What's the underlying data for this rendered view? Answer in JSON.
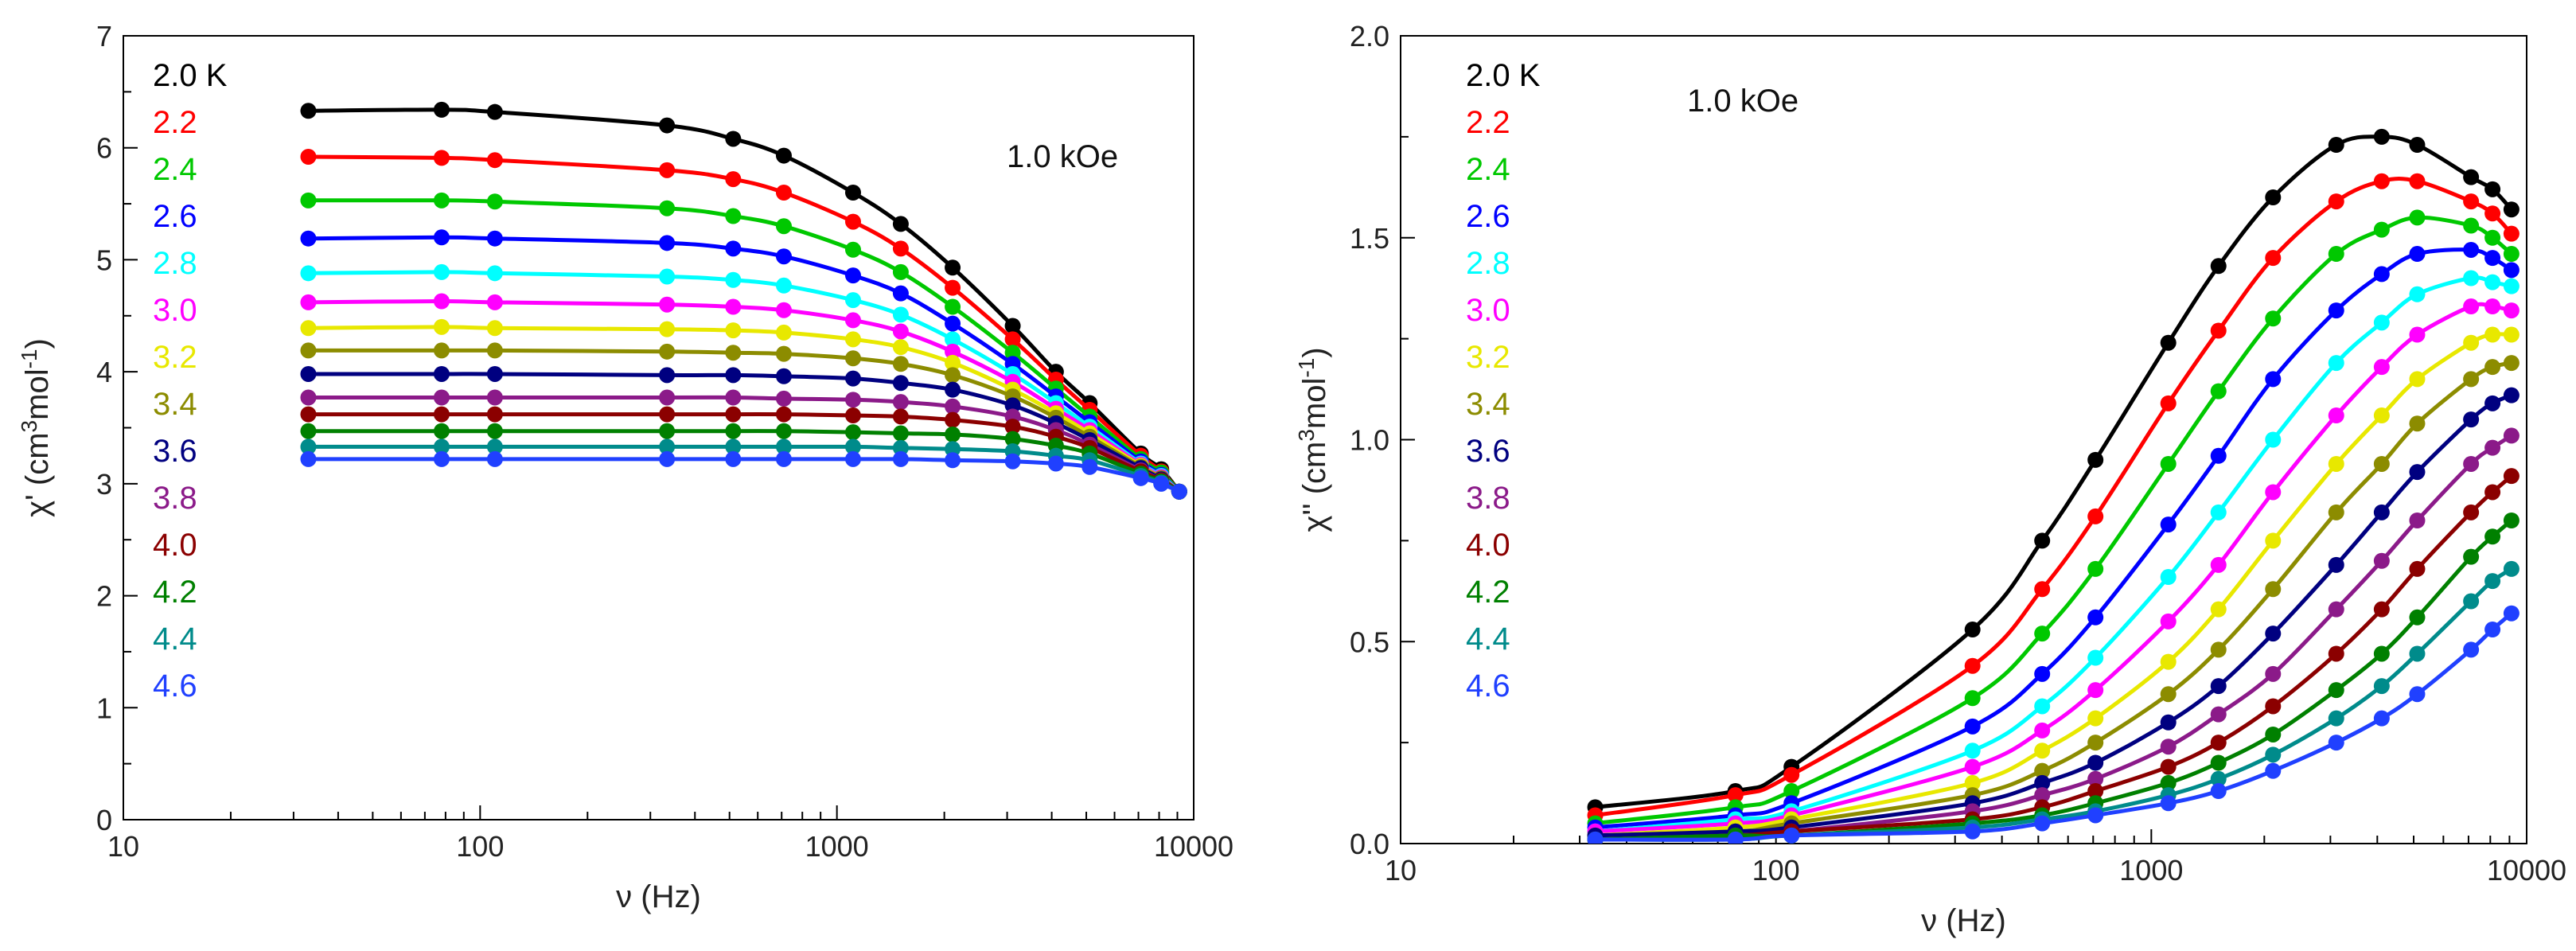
{
  "chart_data": [
    {
      "type": "line",
      "title": "",
      "xlabel": "ν (Hz)",
      "ylabel": "χ' (cm3mol-1)",
      "ylabel_main": "χ' (cm",
      "ylabel_sup3": "3",
      "ylabel_mid": "mol",
      "ylabel_supm1": "-1",
      "ylabel_end": ")",
      "xscale": "log",
      "xlim": [
        10,
        10000
      ],
      "ylim": [
        0,
        7
      ],
      "xticks": [
        "10",
        "100",
        "1000",
        "10000"
      ],
      "yticks": [
        "0",
        "1",
        "2",
        "3",
        "4",
        "5",
        "6",
        "7"
      ],
      "field": "1.0 kOe",
      "legend_position": "top-left",
      "x": [
        33,
        78,
        110,
        334,
        512,
        710,
        1110,
        1510,
        2110,
        3110,
        4110,
        5110,
        7110,
        8110,
        9110
      ],
      "series": [
        {
          "name": "2.0 K",
          "color": "#000000",
          "values": [
            6.33,
            6.34,
            6.32,
            6.2,
            6.08,
            5.93,
            5.6,
            5.32,
            4.93,
            4.41,
            4.0,
            3.72,
            3.27,
            3.13,
            2.93
          ]
        },
        {
          "name": "2.2",
          "color": "#ff0000",
          "values": [
            5.92,
            5.91,
            5.89,
            5.8,
            5.72,
            5.6,
            5.34,
            5.1,
            4.75,
            4.29,
            3.93,
            3.66,
            3.25,
            3.11,
            2.93
          ]
        },
        {
          "name": "2.4",
          "color": "#00c800",
          "values": [
            5.53,
            5.53,
            5.52,
            5.46,
            5.39,
            5.3,
            5.09,
            4.89,
            4.58,
            4.17,
            3.85,
            3.6,
            3.22,
            3.1,
            2.93
          ]
        },
        {
          "name": "2.6",
          "color": "#0000ff",
          "values": [
            5.19,
            5.2,
            5.19,
            5.15,
            5.1,
            5.03,
            4.86,
            4.7,
            4.43,
            4.07,
            3.78,
            3.55,
            3.2,
            3.08,
            2.93
          ]
        },
        {
          "name": "2.8",
          "color": "#00ffff",
          "values": [
            4.88,
            4.89,
            4.88,
            4.85,
            4.82,
            4.77,
            4.64,
            4.51,
            4.29,
            3.98,
            3.72,
            3.51,
            3.18,
            3.07,
            2.93
          ]
        },
        {
          "name": "3.0",
          "color": "#ff00ff",
          "values": [
            4.62,
            4.63,
            4.62,
            4.6,
            4.58,
            4.55,
            4.46,
            4.36,
            4.18,
            3.91,
            3.67,
            3.48,
            3.17,
            3.06,
            2.93
          ]
        },
        {
          "name": "3.2",
          "color": "#e8e800",
          "values": [
            4.39,
            4.4,
            4.39,
            4.38,
            4.37,
            4.35,
            4.29,
            4.22,
            4.08,
            3.84,
            3.63,
            3.45,
            3.16,
            3.05,
            2.93
          ]
        },
        {
          "name": "3.4",
          "color": "#8c8c00",
          "values": [
            4.19,
            4.19,
            4.19,
            4.18,
            4.17,
            4.16,
            4.12,
            4.07,
            3.97,
            3.78,
            3.59,
            3.42,
            3.15,
            3.05,
            2.93
          ]
        },
        {
          "name": "3.6",
          "color": "#000080",
          "values": [
            3.98,
            3.98,
            3.98,
            3.97,
            3.97,
            3.96,
            3.94,
            3.9,
            3.84,
            3.7,
            3.54,
            3.39,
            3.14,
            3.04,
            2.93
          ]
        },
        {
          "name": "3.8",
          "color": "#8b1a89",
          "values": [
            3.77,
            3.77,
            3.77,
            3.77,
            3.77,
            3.76,
            3.75,
            3.73,
            3.69,
            3.6,
            3.48,
            3.35,
            3.12,
            3.03,
            2.93
          ]
        },
        {
          "name": "4.0",
          "color": "#8b0000",
          "values": [
            3.62,
            3.62,
            3.62,
            3.62,
            3.62,
            3.62,
            3.61,
            3.6,
            3.57,
            3.51,
            3.42,
            3.32,
            3.11,
            3.03,
            2.93
          ]
        },
        {
          "name": "4.2",
          "color": "#008000",
          "values": [
            3.47,
            3.47,
            3.47,
            3.47,
            3.47,
            3.47,
            3.46,
            3.45,
            3.44,
            3.4,
            3.34,
            3.27,
            3.09,
            3.02,
            2.93
          ]
        },
        {
          "name": "4.4",
          "color": "#008b8b",
          "values": [
            3.33,
            3.33,
            3.33,
            3.33,
            3.33,
            3.33,
            3.33,
            3.32,
            3.31,
            3.29,
            3.25,
            3.21,
            3.07,
            3.01,
            2.93
          ]
        },
        {
          "name": "4.6",
          "color": "#2040ff",
          "values": [
            3.22,
            3.22,
            3.22,
            3.22,
            3.22,
            3.22,
            3.22,
            3.22,
            3.21,
            3.2,
            3.18,
            3.15,
            3.05,
            3.0,
            2.93
          ]
        }
      ]
    },
    {
      "type": "line",
      "title": "",
      "xlabel": "ν (Hz)",
      "ylabel": "χ'' (cm3mol-1)",
      "ylabel_main": "χ'' (cm",
      "ylabel_sup3": "3",
      "ylabel_mid": "mol",
      "ylabel_supm1": "-1",
      "ylabel_end": ")",
      "xscale": "log",
      "xlim": [
        10,
        10000
      ],
      "ylim": [
        0,
        2.0
      ],
      "xticks": [
        "10",
        "100",
        "1000",
        "10000"
      ],
      "yticks": [
        "0.0",
        "0.5",
        "1.0",
        "1.5",
        "2.0"
      ],
      "field": "1.0 kOe",
      "legend_position": "top-left",
      "x": [
        33,
        78,
        110,
        334,
        512,
        710,
        1110,
        1510,
        2110,
        3110,
        4110,
        5110,
        7110,
        8110,
        9110
      ],
      "series": [
        {
          "name": "2.0 K",
          "color": "#000000",
          "values": [
            0.09,
            0.13,
            0.19,
            0.53,
            0.75,
            0.95,
            1.24,
            1.43,
            1.6,
            1.73,
            1.75,
            1.73,
            1.65,
            1.62,
            1.57
          ]
        },
        {
          "name": "2.2",
          "color": "#ff0000",
          "values": [
            0.07,
            0.12,
            0.17,
            0.44,
            0.63,
            0.81,
            1.09,
            1.27,
            1.45,
            1.59,
            1.64,
            1.64,
            1.59,
            1.56,
            1.51
          ]
        },
        {
          "name": "2.4",
          "color": "#00c800",
          "values": [
            0.05,
            0.09,
            0.13,
            0.36,
            0.52,
            0.68,
            0.94,
            1.12,
            1.3,
            1.46,
            1.52,
            1.55,
            1.53,
            1.5,
            1.46
          ]
        },
        {
          "name": "2.6",
          "color": "#0000ff",
          "values": [
            0.04,
            0.07,
            0.1,
            0.29,
            0.42,
            0.56,
            0.79,
            0.96,
            1.15,
            1.32,
            1.41,
            1.46,
            1.47,
            1.45,
            1.42
          ]
        },
        {
          "name": "2.8",
          "color": "#00ffff",
          "values": [
            0.03,
            0.06,
            0.08,
            0.23,
            0.34,
            0.46,
            0.66,
            0.82,
            1.0,
            1.19,
            1.29,
            1.36,
            1.4,
            1.39,
            1.38
          ]
        },
        {
          "name": "3.0",
          "color": "#ff00ff",
          "values": [
            0.03,
            0.05,
            0.07,
            0.19,
            0.28,
            0.38,
            0.55,
            0.69,
            0.87,
            1.06,
            1.18,
            1.26,
            1.33,
            1.33,
            1.32
          ]
        },
        {
          "name": "3.2",
          "color": "#e8e800",
          "values": [
            0.02,
            0.04,
            0.06,
            0.15,
            0.23,
            0.31,
            0.45,
            0.58,
            0.75,
            0.94,
            1.06,
            1.15,
            1.24,
            1.26,
            1.26
          ]
        },
        {
          "name": "3.4",
          "color": "#8c8c00",
          "values": [
            0.02,
            0.03,
            0.05,
            0.12,
            0.18,
            0.25,
            0.37,
            0.48,
            0.63,
            0.82,
            0.94,
            1.04,
            1.15,
            1.18,
            1.19
          ]
        },
        {
          "name": "3.6",
          "color": "#000080",
          "values": [
            0.02,
            0.03,
            0.04,
            0.1,
            0.15,
            0.2,
            0.3,
            0.39,
            0.52,
            0.69,
            0.82,
            0.92,
            1.05,
            1.09,
            1.11
          ]
        },
        {
          "name": "3.8",
          "color": "#8b1a89",
          "values": [
            0.01,
            0.02,
            0.03,
            0.08,
            0.12,
            0.16,
            0.24,
            0.32,
            0.42,
            0.58,
            0.7,
            0.8,
            0.94,
            0.98,
            1.01
          ]
        },
        {
          "name": "4.0",
          "color": "#8b0000",
          "values": [
            0.01,
            0.02,
            0.03,
            0.06,
            0.09,
            0.13,
            0.19,
            0.25,
            0.34,
            0.47,
            0.58,
            0.68,
            0.82,
            0.87,
            0.91
          ]
        },
        {
          "name": "4.2",
          "color": "#008000",
          "values": [
            0.01,
            0.02,
            0.02,
            0.05,
            0.07,
            0.1,
            0.15,
            0.2,
            0.27,
            0.38,
            0.47,
            0.56,
            0.71,
            0.76,
            0.8
          ]
        },
        {
          "name": "4.4",
          "color": "#008b8b",
          "values": [
            0.01,
            0.01,
            0.02,
            0.04,
            0.06,
            0.08,
            0.12,
            0.16,
            0.22,
            0.31,
            0.39,
            0.47,
            0.6,
            0.65,
            0.68
          ]
        },
        {
          "name": "4.6",
          "color": "#2040ff",
          "values": [
            0.01,
            0.01,
            0.02,
            0.03,
            0.05,
            0.07,
            0.1,
            0.13,
            0.18,
            0.25,
            0.31,
            0.37,
            0.48,
            0.53,
            0.57
          ]
        }
      ]
    }
  ]
}
